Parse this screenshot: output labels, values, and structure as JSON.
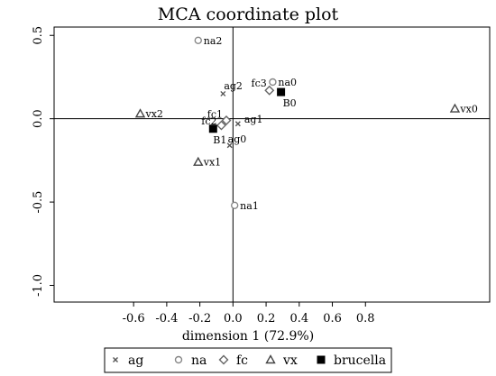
{
  "chart_data": {
    "type": "scatter",
    "title": "MCA coordinate plot",
    "xlabel": "dimension 1 (72.9%)",
    "ylabel": "",
    "xlim": [
      -1.08,
      1.55
    ],
    "ylim": [
      -1.1,
      0.55
    ],
    "xticks": [
      -0.6,
      -0.4,
      -0.2,
      0,
      0.2,
      0.4,
      0.6,
      0.8
    ],
    "xtick_labels": [
      "-0.6",
      "-0.4",
      "-0.2",
      "0.0",
      "0.2",
      "0.4",
      "0.6",
      "0.8"
    ],
    "yticks": [
      0.5,
      0.0,
      -0.5,
      -1.0
    ],
    "ytick_labels": [
      "0.5",
      "0.0",
      "-0.5",
      "-1.0"
    ],
    "legend_position": "bottom",
    "series": [
      {
        "name": "ag",
        "marker": "x",
        "color": "#555555",
        "points": [
          {
            "label": "ag2",
            "x": -0.06,
            "y": 0.15
          },
          {
            "label": "ag1",
            "x": 0.03,
            "y": -0.03
          },
          {
            "label": "ag0",
            "x": -0.02,
            "y": -0.16
          }
        ]
      },
      {
        "name": "na",
        "marker": "circle",
        "color": "#888888",
        "points": [
          {
            "label": "na2",
            "x": -0.21,
            "y": 0.47
          },
          {
            "label": "na0",
            "x": 0.24,
            "y": 0.22
          },
          {
            "label": "na1",
            "x": 0.01,
            "y": -0.52
          }
        ]
      },
      {
        "name": "fc",
        "marker": "diamond",
        "color": "#666666",
        "points": [
          {
            "label": "fc3",
            "x": 0.22,
            "y": 0.17
          },
          {
            "label": "fc1",
            "x": -0.04,
            "y": -0.01
          },
          {
            "label": "fc2",
            "x": -0.07,
            "y": -0.04
          }
        ]
      },
      {
        "name": "vx",
        "marker": "triangle",
        "color": "#444444",
        "points": [
          {
            "label": "vx2",
            "x": -0.56,
            "y": 0.03
          },
          {
            "label": "vx0",
            "x": 1.34,
            "y": 0.06
          },
          {
            "label": "vx1",
            "x": -0.21,
            "y": -0.26
          }
        ]
      },
      {
        "name": "brucella",
        "marker": "square",
        "color": "#000000",
        "points": [
          {
            "label": "B0",
            "x": 0.29,
            "y": 0.16
          },
          {
            "label": "B1",
            "x": -0.12,
            "y": -0.06
          }
        ]
      }
    ]
  }
}
